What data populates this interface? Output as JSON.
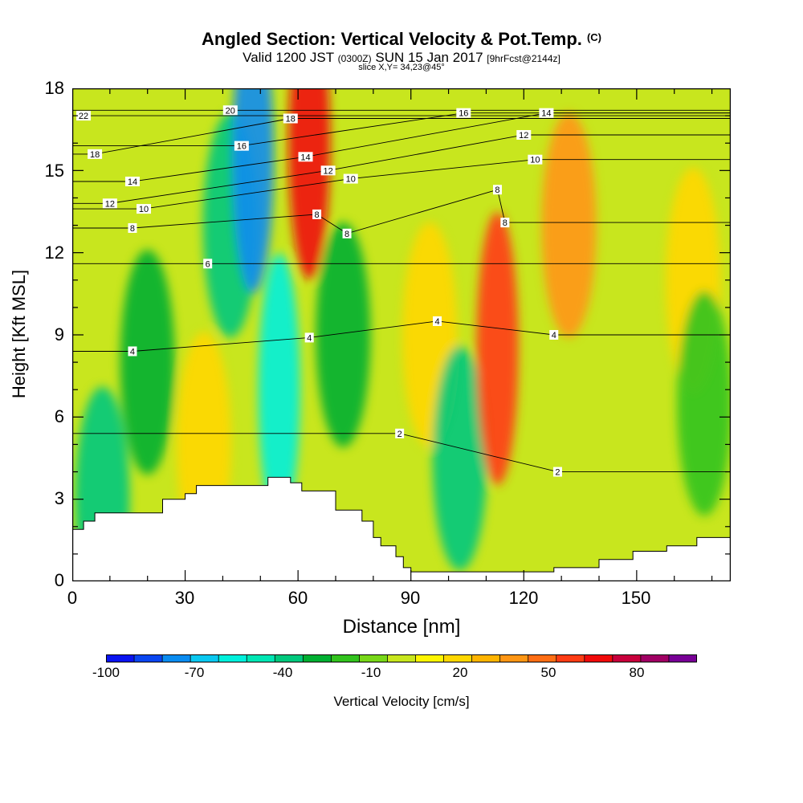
{
  "header": {
    "title": "Angled Section: Vertical Velocity & Pot.Temp.",
    "copyright": "(C)",
    "valid_a": "Valid 1200 JST",
    "valid_z": "(0300Z)",
    "valid_b": "SUN 15 Jan 2017",
    "forecast": "[9hrFcst@2144z]",
    "slice": "slice X,Y= 34,23@45°"
  },
  "chart_data": {
    "type": "heatmap",
    "title": "Angled Section: Vertical Velocity & Pot.Temp.",
    "xlabel": "Distance [nm]",
    "ylabel": "Height [Kft MSL]",
    "xlim": [
      0,
      175
    ],
    "ylim": [
      0,
      18
    ],
    "xticks": [
      "0",
      "30",
      "60",
      "90",
      "120",
      "150"
    ],
    "yticks": [
      "0",
      "3",
      "6",
      "9",
      "12",
      "15",
      "18"
    ],
    "colorbar": {
      "label": "Vertical Velocity [cm/s]",
      "tick_labels": [
        "-100",
        "-70",
        "-40",
        "-10",
        "20",
        "50",
        "80"
      ],
      "levels": [
        -100,
        -90,
        -80,
        -70,
        -60,
        -50,
        -40,
        -30,
        -20,
        -10,
        0,
        10,
        20,
        30,
        40,
        50,
        60,
        70,
        80,
        90,
        100
      ],
      "colors": [
        "#0a14f0",
        "#0a46f0",
        "#0a8cf0",
        "#0ac8f0",
        "#00f0dc",
        "#00e6b4",
        "#00c87d",
        "#00af32",
        "#32c31e",
        "#78d719",
        "#c8e61e",
        "#fff500",
        "#ffd700",
        "#ffb400",
        "#ff9614",
        "#ff6e14",
        "#ff3c14",
        "#f00a0a",
        "#c8003c",
        "#a00064",
        "#780096"
      ]
    },
    "series": [
      {
        "name": "Vertical Velocity",
        "units": "cm/s",
        "features": [
          {
            "x": 8,
            "z": 3.0,
            "value": -40
          },
          {
            "x": 20,
            "z": 8.0,
            "value": -30
          },
          {
            "x": 35,
            "z": 5.0,
            "value": 25
          },
          {
            "x": 42,
            "z": 13.0,
            "value": -40
          },
          {
            "x": 48,
            "z": 15.5,
            "value": -80
          },
          {
            "x": 55,
            "z": 7.0,
            "value": -60
          },
          {
            "x": 63,
            "z": 16.0,
            "value": 75
          },
          {
            "x": 72,
            "z": 9.0,
            "value": -30
          },
          {
            "x": 95,
            "z": 9.0,
            "value": 20
          },
          {
            "x": 103,
            "z": 4.5,
            "value": -40
          },
          {
            "x": 113,
            "z": 8.5,
            "value": 65
          },
          {
            "x": 132,
            "z": 13.0,
            "value": 45
          },
          {
            "x": 165,
            "z": 11.0,
            "value": 20
          },
          {
            "x": 168,
            "z": 6.5,
            "value": -20
          }
        ]
      },
      {
        "name": "Pot.Temp.",
        "contour_labels": [
          {
            "text": "22",
            "x": 3,
            "z": 17.0
          },
          {
            "text": "20",
            "x": 42,
            "z": 17.2
          },
          {
            "text": "18",
            "x": 6,
            "z": 15.6
          },
          {
            "text": "18",
            "x": 58,
            "z": 16.9
          },
          {
            "text": "16",
            "x": 45,
            "z": 15.9
          },
          {
            "text": "16",
            "x": 104,
            "z": 17.1
          },
          {
            "text": "14",
            "x": 16,
            "z": 14.6
          },
          {
            "text": "14",
            "x": 62,
            "z": 15.5
          },
          {
            "text": "14",
            "x": 126,
            "z": 17.1
          },
          {
            "text": "12",
            "x": 10,
            "z": 13.8
          },
          {
            "text": "12",
            "x": 68,
            "z": 15.0
          },
          {
            "text": "12",
            "x": 120,
            "z": 16.3
          },
          {
            "text": "10",
            "x": 19,
            "z": 13.6
          },
          {
            "text": "10",
            "x": 74,
            "z": 14.7
          },
          {
            "text": "10",
            "x": 123,
            "z": 15.4
          },
          {
            "text": "8",
            "x": 16,
            "z": 12.9
          },
          {
            "text": "8",
            "x": 65,
            "z": 13.4
          },
          {
            "text": "8",
            "x": 73,
            "z": 12.7
          },
          {
            "text": "8",
            "x": 113,
            "z": 14.3
          },
          {
            "text": "8",
            "x": 115,
            "z": 13.1
          },
          {
            "text": "6",
            "x": 36,
            "z": 11.6
          },
          {
            "text": "4",
            "x": 16,
            "z": 8.4
          },
          {
            "text": "4",
            "x": 63,
            "z": 8.9
          },
          {
            "text": "4",
            "x": 97,
            "z": 9.5
          },
          {
            "text": "4",
            "x": 128,
            "z": 9.0
          },
          {
            "text": "2",
            "x": 87,
            "z": 5.4
          },
          {
            "text": "2",
            "x": 129,
            "z": 4.0
          }
        ]
      }
    ],
    "terrain_steps": [
      [
        0,
        1.9
      ],
      [
        3,
        2.2
      ],
      [
        6,
        2.5
      ],
      [
        24,
        3.0
      ],
      [
        30,
        3.2
      ],
      [
        33,
        3.5
      ],
      [
        36,
        3.5
      ],
      [
        52,
        3.8
      ],
      [
        58,
        3.6
      ],
      [
        61,
        3.3
      ],
      [
        67,
        3.3
      ],
      [
        70,
        2.6
      ],
      [
        77,
        2.2
      ],
      [
        80,
        1.6
      ],
      [
        82,
        1.3
      ],
      [
        86,
        0.9
      ],
      [
        88,
        0.5
      ],
      [
        90,
        0.35
      ],
      [
        110,
        0.35
      ],
      [
        128,
        0.5
      ],
      [
        140,
        0.8
      ],
      [
        149,
        1.1
      ],
      [
        158,
        1.3
      ],
      [
        166,
        1.6
      ],
      [
        175,
        1.6
      ]
    ],
    "grid": false
  }
}
